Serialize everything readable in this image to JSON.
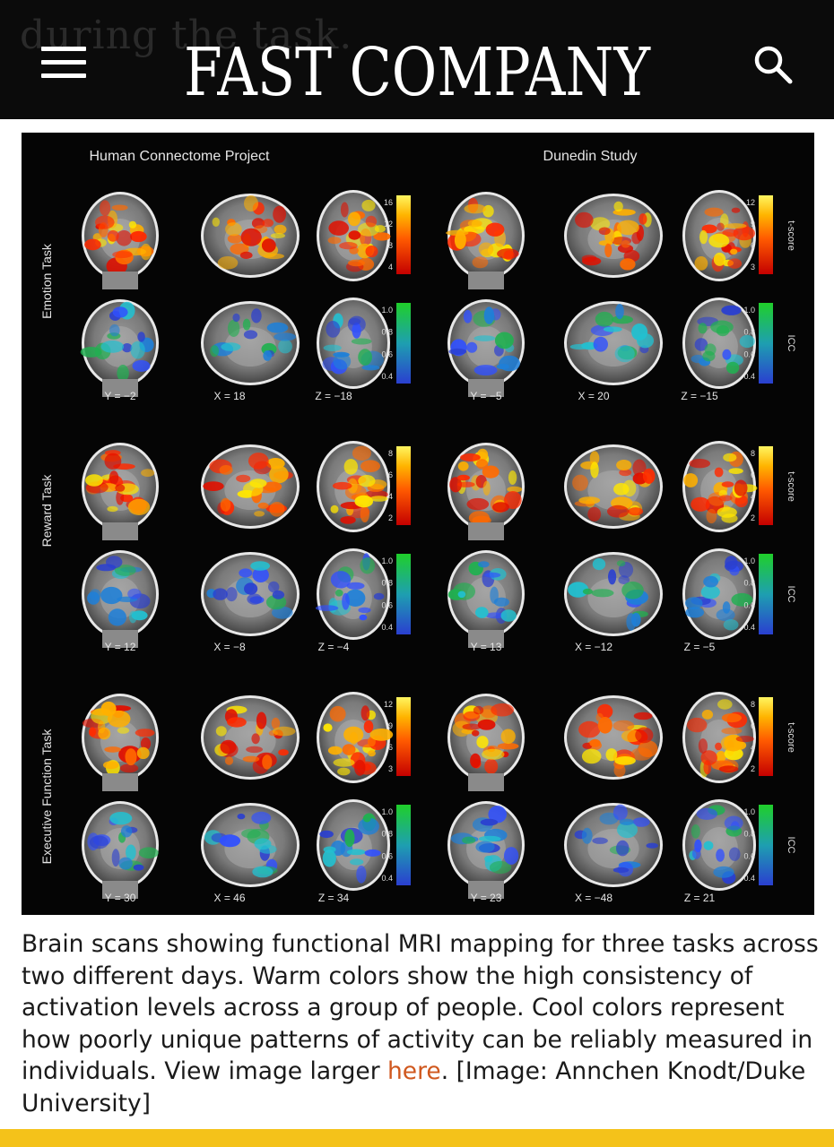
{
  "header": {
    "ghost_text": "during the task.",
    "logo_text": "FAST COMPANY",
    "menu_icon": "hamburger-menu-icon",
    "search_icon": "search-icon"
  },
  "figure": {
    "col_titles": [
      "Human Connectome Project",
      "Dunedin Study"
    ],
    "row_labels": [
      "Emotion Task",
      "Reward Task",
      "Executive Function Task"
    ],
    "coords": [
      [
        "Y = −2",
        "X = 18",
        "Z = −18",
        "Y = −5",
        "X = 20",
        "Z = −15"
      ],
      [
        "Y = 12",
        "X = −8",
        "Z = −4",
        "Y = 13",
        "X = −12",
        "Z = −5"
      ],
      [
        "Y = 30",
        "X = 46",
        "Z = 34",
        "Y = 23",
        "X = −48",
        "Z = 21"
      ]
    ],
    "warm_scales": [
      {
        "left": [
          "16",
          "12",
          "8",
          "4"
        ],
        "right": [
          "12",
          "9",
          "6",
          "3"
        ]
      },
      {
        "left": [
          "8",
          "6",
          "4",
          "2"
        ],
        "right": [
          "8",
          "6",
          "4",
          "2"
        ]
      },
      {
        "left": [
          "12",
          "9",
          "6",
          "3"
        ],
        "right": [
          "8",
          "6",
          "4",
          "2"
        ]
      }
    ],
    "cool_scale": [
      "1.0",
      "0.8",
      "0.6",
      "0.4"
    ],
    "warm_label": "t-score",
    "cool_label": "ICC"
  },
  "caption": {
    "text": "Brain scans showing functional MRI mapping for three tasks across two different days. Warm colors show the high consistency of activation levels across a group of people. Cool colors represent how poorly unique patterns of activity can be reliably measured in individuals. View image larger ",
    "link": "here",
    "tail": ". [Image: Annchen Knodt/Duke University]"
  },
  "colors": {
    "header_bg": "#0b0b0b",
    "link": "#d0581e",
    "accent_bar": "#f4c21a"
  }
}
